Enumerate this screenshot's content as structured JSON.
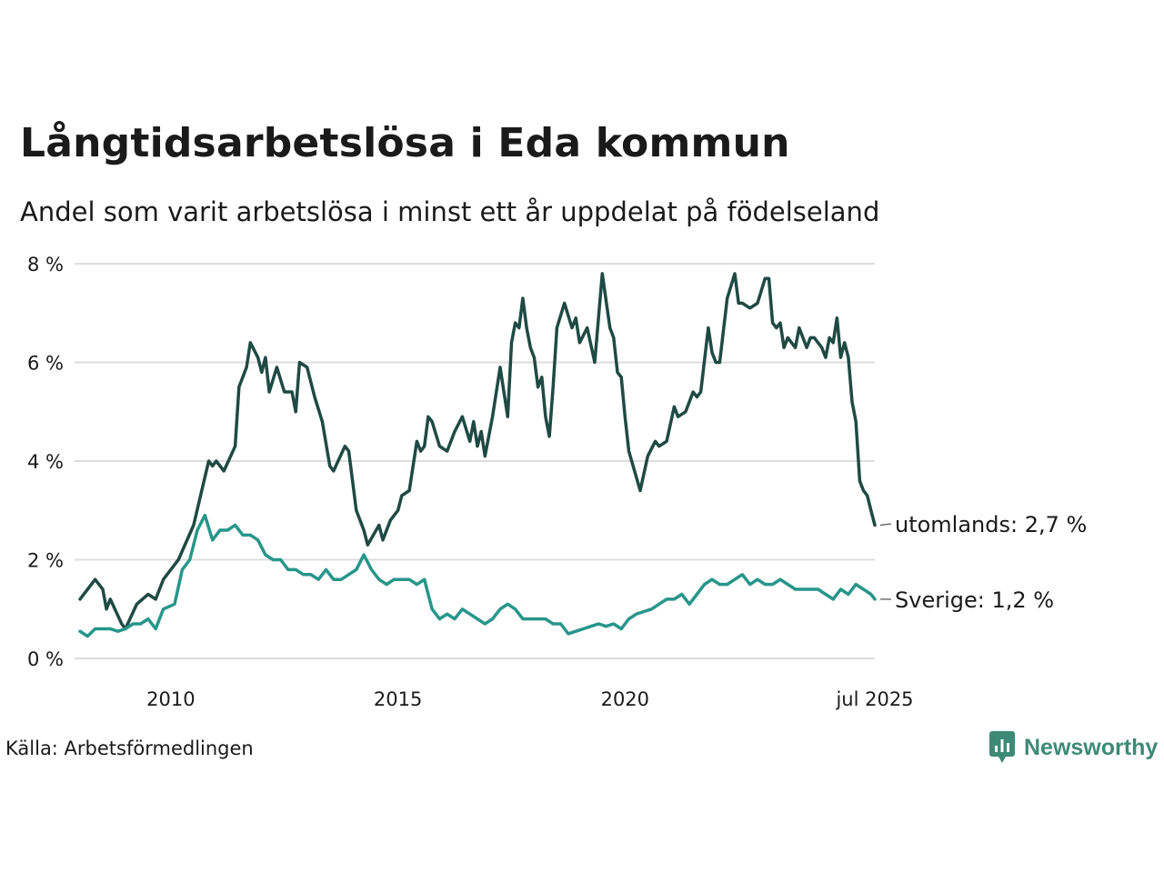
{
  "title": "Långtidsarbetslösa i Eda kommun",
  "subtitle": "Andel som varit arbetslösa i minst ett år uppdelat på födelseland",
  "source": "Källa: Arbetsförmedlingen",
  "brand": {
    "name": "Newsworthy",
    "icon": "newsworthy-logo-icon",
    "color": "#3d8a76"
  },
  "chart_data": {
    "type": "line",
    "ylim": [
      0,
      8
    ],
    "xlim": [
      "2008-01",
      "2025-07"
    ],
    "y_ticks": [
      {
        "value": 0,
        "label": "0 %"
      },
      {
        "value": 2,
        "label": "2 %"
      },
      {
        "value": 4,
        "label": "4 %"
      },
      {
        "value": 6,
        "label": "6 %"
      },
      {
        "value": 8,
        "label": "8 %"
      }
    ],
    "x_ticks": [
      {
        "date": "2010-01",
        "label": "2010"
      },
      {
        "date": "2015-01",
        "label": "2015"
      },
      {
        "date": "2020-01",
        "label": "2020"
      },
      {
        "date": "2025-07",
        "label": "jul 2025"
      }
    ],
    "grid": "horizontal",
    "series": [
      {
        "name": "utomlands",
        "end_label": "utomlands: 2,7 %",
        "color": "#1f4a43",
        "points": [
          [
            "2008-01",
            1.2
          ],
          [
            "2008-05",
            1.6
          ],
          [
            "2008-07",
            1.4
          ],
          [
            "2008-08",
            1.0
          ],
          [
            "2008-09",
            1.2
          ],
          [
            "2008-12",
            0.7
          ],
          [
            "2009-01",
            0.6
          ],
          [
            "2009-04",
            1.1
          ],
          [
            "2009-07",
            1.3
          ],
          [
            "2009-09",
            1.2
          ],
          [
            "2009-11",
            1.6
          ],
          [
            "2010-03",
            2.0
          ],
          [
            "2010-07",
            2.7
          ],
          [
            "2010-11",
            4.0
          ],
          [
            "2010-12",
            3.9
          ],
          [
            "2011-01",
            4.0
          ],
          [
            "2011-03",
            3.8
          ],
          [
            "2011-06",
            4.3
          ],
          [
            "2011-07",
            5.5
          ],
          [
            "2011-09",
            5.9
          ],
          [
            "2011-10",
            6.4
          ],
          [
            "2011-12",
            6.1
          ],
          [
            "2012-01",
            5.8
          ],
          [
            "2012-02",
            6.1
          ],
          [
            "2012-03",
            5.4
          ],
          [
            "2012-05",
            5.9
          ],
          [
            "2012-07",
            5.4
          ],
          [
            "2012-09",
            5.4
          ],
          [
            "2012-10",
            5.0
          ],
          [
            "2012-11",
            6.0
          ],
          [
            "2013-01",
            5.9
          ],
          [
            "2013-03",
            5.3
          ],
          [
            "2013-05",
            4.8
          ],
          [
            "2013-07",
            3.9
          ],
          [
            "2013-08",
            3.8
          ],
          [
            "2013-11",
            4.3
          ],
          [
            "2013-12",
            4.2
          ],
          [
            "2014-02",
            3.0
          ],
          [
            "2014-04",
            2.6
          ],
          [
            "2014-05",
            2.3
          ],
          [
            "2014-08",
            2.7
          ],
          [
            "2014-09",
            2.4
          ],
          [
            "2014-11",
            2.8
          ],
          [
            "2015-01",
            3.0
          ],
          [
            "2015-02",
            3.3
          ],
          [
            "2015-04",
            3.4
          ],
          [
            "2015-06",
            4.4
          ],
          [
            "2015-07",
            4.2
          ],
          [
            "2015-08",
            4.3
          ],
          [
            "2015-09",
            4.9
          ],
          [
            "2015-10",
            4.8
          ],
          [
            "2015-12",
            4.3
          ],
          [
            "2016-02",
            4.2
          ],
          [
            "2016-04",
            4.6
          ],
          [
            "2016-06",
            4.9
          ],
          [
            "2016-08",
            4.4
          ],
          [
            "2016-09",
            4.8
          ],
          [
            "2016-10",
            4.3
          ],
          [
            "2016-11",
            4.6
          ],
          [
            "2016-12",
            4.1
          ],
          [
            "2017-02",
            4.9
          ],
          [
            "2017-04",
            5.9
          ],
          [
            "2017-05",
            5.4
          ],
          [
            "2017-06",
            4.9
          ],
          [
            "2017-07",
            6.4
          ],
          [
            "2017-08",
            6.8
          ],
          [
            "2017-09",
            6.7
          ],
          [
            "2017-10",
            7.3
          ],
          [
            "2017-11",
            6.7
          ],
          [
            "2017-12",
            6.3
          ],
          [
            "2018-01",
            6.1
          ],
          [
            "2018-02",
            5.5
          ],
          [
            "2018-03",
            5.7
          ],
          [
            "2018-04",
            4.9
          ],
          [
            "2018-05",
            4.5
          ],
          [
            "2018-06",
            5.5
          ],
          [
            "2018-07",
            6.7
          ],
          [
            "2018-09",
            7.2
          ],
          [
            "2018-11",
            6.7
          ],
          [
            "2018-12",
            6.9
          ],
          [
            "2019-01",
            6.4
          ],
          [
            "2019-03",
            6.7
          ],
          [
            "2019-05",
            6.0
          ],
          [
            "2019-07",
            7.8
          ],
          [
            "2019-09",
            6.7
          ],
          [
            "2019-10",
            6.5
          ],
          [
            "2019-11",
            5.8
          ],
          [
            "2019-12",
            5.7
          ],
          [
            "2020-01",
            4.9
          ],
          [
            "2020-02",
            4.2
          ],
          [
            "2020-05",
            3.4
          ],
          [
            "2020-07",
            4.1
          ],
          [
            "2020-09",
            4.4
          ],
          [
            "2020-10",
            4.3
          ],
          [
            "2020-12",
            4.4
          ],
          [
            "2021-02",
            5.1
          ],
          [
            "2021-03",
            4.9
          ],
          [
            "2021-05",
            5.0
          ],
          [
            "2021-07",
            5.4
          ],
          [
            "2021-08",
            5.3
          ],
          [
            "2021-09",
            5.4
          ],
          [
            "2021-11",
            6.7
          ],
          [
            "2021-12",
            6.2
          ],
          [
            "2022-01",
            6.0
          ],
          [
            "2022-02",
            6.0
          ],
          [
            "2022-04",
            7.3
          ],
          [
            "2022-06",
            7.8
          ],
          [
            "2022-07",
            7.2
          ],
          [
            "2022-08",
            7.2
          ],
          [
            "2022-10",
            7.1
          ],
          [
            "2022-12",
            7.2
          ],
          [
            "2023-02",
            7.7
          ],
          [
            "2023-03",
            7.7
          ],
          [
            "2023-04",
            6.8
          ],
          [
            "2023-05",
            6.7
          ],
          [
            "2023-06",
            6.8
          ],
          [
            "2023-07",
            6.3
          ],
          [
            "2023-08",
            6.5
          ],
          [
            "2023-09",
            6.4
          ],
          [
            "2023-10",
            6.3
          ],
          [
            "2023-11",
            6.7
          ],
          [
            "2024-01",
            6.3
          ],
          [
            "2024-02",
            6.5
          ],
          [
            "2024-03",
            6.5
          ],
          [
            "2024-05",
            6.3
          ],
          [
            "2024-06",
            6.1
          ],
          [
            "2024-07",
            6.5
          ],
          [
            "2024-08",
            6.4
          ],
          [
            "2024-09",
            6.9
          ],
          [
            "2024-10",
            6.1
          ],
          [
            "2024-11",
            6.4
          ],
          [
            "2024-12",
            6.1
          ],
          [
            "2025-01",
            5.2
          ],
          [
            "2025-02",
            4.8
          ],
          [
            "2025-03",
            3.6
          ],
          [
            "2025-04",
            3.4
          ],
          [
            "2025-05",
            3.3
          ],
          [
            "2025-06",
            3.0
          ],
          [
            "2025-07",
            2.7
          ]
        ]
      },
      {
        "name": "Sverige",
        "end_label": "Sverige: 1,2 %",
        "color": "#27968a",
        "points": [
          [
            "2008-01",
            0.55
          ],
          [
            "2008-03",
            0.45
          ],
          [
            "2008-05",
            0.6
          ],
          [
            "2008-07",
            0.6
          ],
          [
            "2008-09",
            0.6
          ],
          [
            "2008-11",
            0.55
          ],
          [
            "2009-01",
            0.6
          ],
          [
            "2009-03",
            0.7
          ],
          [
            "2009-05",
            0.7
          ],
          [
            "2009-07",
            0.8
          ],
          [
            "2009-09",
            0.6
          ],
          [
            "2009-11",
            1.0
          ],
          [
            "2010-02",
            1.1
          ],
          [
            "2010-04",
            1.8
          ],
          [
            "2010-06",
            2.0
          ],
          [
            "2010-08",
            2.6
          ],
          [
            "2010-10",
            2.9
          ],
          [
            "2010-12",
            2.4
          ],
          [
            "2011-02",
            2.6
          ],
          [
            "2011-04",
            2.6
          ],
          [
            "2011-06",
            2.7
          ],
          [
            "2011-08",
            2.5
          ],
          [
            "2011-10",
            2.5
          ],
          [
            "2011-12",
            2.4
          ],
          [
            "2012-02",
            2.1
          ],
          [
            "2012-04",
            2.0
          ],
          [
            "2012-06",
            2.0
          ],
          [
            "2012-08",
            1.8
          ],
          [
            "2012-10",
            1.8
          ],
          [
            "2012-12",
            1.7
          ],
          [
            "2013-02",
            1.7
          ],
          [
            "2013-04",
            1.6
          ],
          [
            "2013-06",
            1.8
          ],
          [
            "2013-08",
            1.6
          ],
          [
            "2013-10",
            1.6
          ],
          [
            "2013-12",
            1.7
          ],
          [
            "2014-02",
            1.8
          ],
          [
            "2014-04",
            2.1
          ],
          [
            "2014-06",
            1.8
          ],
          [
            "2014-08",
            1.6
          ],
          [
            "2014-10",
            1.5
          ],
          [
            "2014-12",
            1.6
          ],
          [
            "2015-02",
            1.6
          ],
          [
            "2015-04",
            1.6
          ],
          [
            "2015-06",
            1.5
          ],
          [
            "2015-08",
            1.6
          ],
          [
            "2015-10",
            1.0
          ],
          [
            "2015-12",
            0.8
          ],
          [
            "2016-02",
            0.9
          ],
          [
            "2016-04",
            0.8
          ],
          [
            "2016-06",
            1.0
          ],
          [
            "2016-08",
            0.9
          ],
          [
            "2016-10",
            0.8
          ],
          [
            "2016-12",
            0.7
          ],
          [
            "2017-02",
            0.8
          ],
          [
            "2017-04",
            1.0
          ],
          [
            "2017-06",
            1.1
          ],
          [
            "2017-08",
            1.0
          ],
          [
            "2017-10",
            0.8
          ],
          [
            "2017-12",
            0.8
          ],
          [
            "2018-02",
            0.8
          ],
          [
            "2018-04",
            0.8
          ],
          [
            "2018-06",
            0.7
          ],
          [
            "2018-08",
            0.7
          ],
          [
            "2018-10",
            0.5
          ],
          [
            "2018-12",
            0.55
          ],
          [
            "2019-02",
            0.6
          ],
          [
            "2019-04",
            0.65
          ],
          [
            "2019-06",
            0.7
          ],
          [
            "2019-08",
            0.65
          ],
          [
            "2019-10",
            0.7
          ],
          [
            "2019-12",
            0.6
          ],
          [
            "2020-02",
            0.8
          ],
          [
            "2020-04",
            0.9
          ],
          [
            "2020-06",
            0.95
          ],
          [
            "2020-08",
            1.0
          ],
          [
            "2020-10",
            1.1
          ],
          [
            "2020-12",
            1.2
          ],
          [
            "2021-02",
            1.2
          ],
          [
            "2021-04",
            1.3
          ],
          [
            "2021-06",
            1.1
          ],
          [
            "2021-08",
            1.3
          ],
          [
            "2021-10",
            1.5
          ],
          [
            "2021-12",
            1.6
          ],
          [
            "2022-02",
            1.5
          ],
          [
            "2022-04",
            1.5
          ],
          [
            "2022-06",
            1.6
          ],
          [
            "2022-08",
            1.7
          ],
          [
            "2022-10",
            1.5
          ],
          [
            "2022-12",
            1.6
          ],
          [
            "2023-02",
            1.5
          ],
          [
            "2023-04",
            1.5
          ],
          [
            "2023-06",
            1.6
          ],
          [
            "2023-08",
            1.5
          ],
          [
            "2023-10",
            1.4
          ],
          [
            "2023-12",
            1.4
          ],
          [
            "2024-02",
            1.4
          ],
          [
            "2024-04",
            1.4
          ],
          [
            "2024-06",
            1.3
          ],
          [
            "2024-08",
            1.2
          ],
          [
            "2024-10",
            1.4
          ],
          [
            "2024-12",
            1.3
          ],
          [
            "2025-02",
            1.5
          ],
          [
            "2025-04",
            1.4
          ],
          [
            "2025-06",
            1.3
          ],
          [
            "2025-07",
            1.2
          ]
        ]
      }
    ]
  }
}
